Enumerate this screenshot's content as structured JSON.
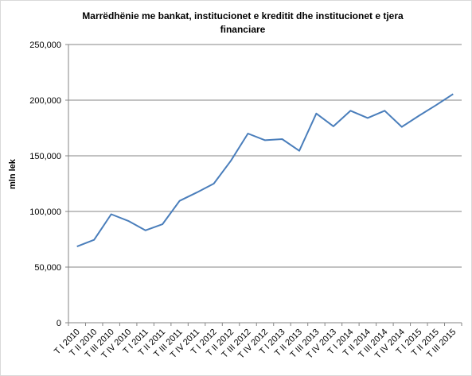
{
  "chart_data": {
    "type": "line",
    "title": "Marrëdhënie me bankat, institucionet e kreditit dhe institucionet e tjera financiare",
    "xlabel": "",
    "ylabel": "mln lek",
    "ylim": [
      0,
      250000
    ],
    "yticks": [
      0,
      50000,
      100000,
      150000,
      200000,
      250000
    ],
    "ytick_labels": [
      "0",
      "50,000",
      "100,000",
      "150,000",
      "200,000",
      "250,000"
    ],
    "grid": true,
    "legend": "none",
    "line_color": "#4a7ebb",
    "categories": [
      "T I 2010",
      "T II 2010",
      "T III 2010",
      "T IV 2010",
      "T I 2011",
      "T II 2011",
      "T III 2011",
      "T IV 2011",
      "T I 2012",
      "T II 2012",
      "T III 2012",
      "T IV 2012",
      "T I 2013",
      "T II 2013",
      "T III 2013",
      "T IV 2013",
      "T I 2014",
      "T II 2014",
      "T III 2014",
      "T IV 2014",
      "T I 2015",
      "T II 2015",
      "T III 2015"
    ],
    "series": [
      {
        "values": [
          68500,
          74500,
          97500,
          91500,
          83000,
          88500,
          109500,
          117000,
          125000,
          145500,
          170000,
          164000,
          165000,
          154500,
          188000,
          176500,
          190500,
          184000,
          190500,
          176000,
          186000,
          195500,
          205500
        ]
      }
    ]
  }
}
